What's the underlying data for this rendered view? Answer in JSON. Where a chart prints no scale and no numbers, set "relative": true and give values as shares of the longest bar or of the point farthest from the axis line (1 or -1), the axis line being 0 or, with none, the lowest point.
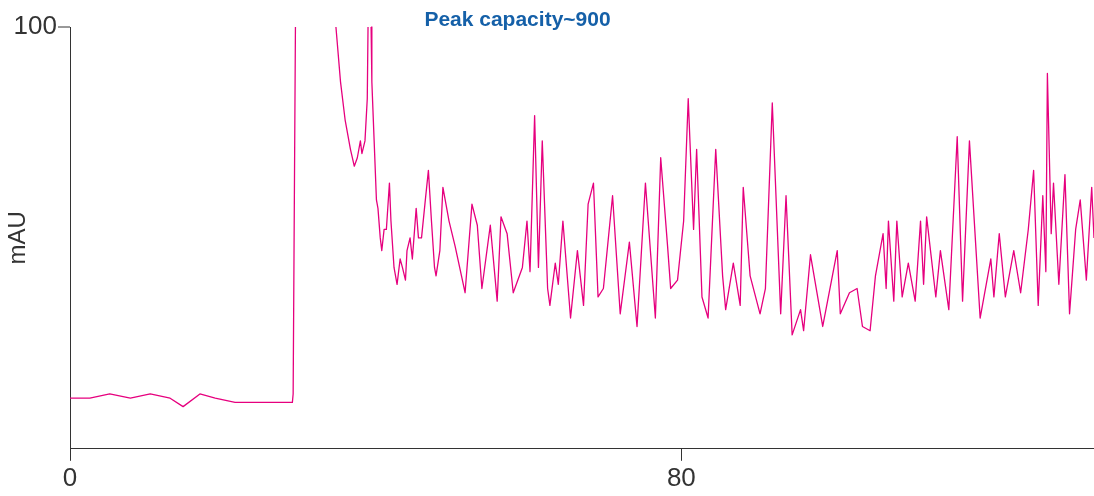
{
  "chart_data": {
    "type": "line",
    "title": "Peak capacity~900",
    "ylabel": "mAU",
    "relative": true,
    "annotations": [
      "100"
    ],
    "xlim": [
      0,
      134
    ],
    "xticks": [
      0,
      80
    ],
    "grid": false,
    "legend": false,
    "marker": "none",
    "line_style": "solid",
    "series": [
      {
        "color": "#e6007e",
        "x": [
          0,
          2.6,
          5.2,
          7.9,
          10.5,
          13.1,
          14.8,
          17.0,
          19.0,
          21.6,
          24.9,
          27.5,
          29.1,
          29.2,
          29.5,
          32.1,
          34.8,
          35.4,
          36.0,
          36.7,
          37.2,
          37.6,
          38.0,
          38.2,
          38.6,
          38.9,
          39.0,
          39.2,
          39.4,
          39.5,
          39.8,
          40.1,
          40.3,
          40.6,
          40.8,
          41.1,
          41.4,
          41.8,
          42.0,
          42.4,
          42.8,
          43.2,
          43.5,
          43.9,
          44.1,
          44.5,
          44.8,
          45.3,
          45.6,
          46.0,
          46.5,
          46.9,
          47.3,
          47.7,
          47.9,
          48.4,
          48.8,
          49.6,
          50.4,
          51.7,
          52.6,
          53.3,
          53.9,
          55.0,
          55.9,
          56.4,
          57.2,
          58.0,
          59.2,
          59.8,
          60.2,
          60.8,
          61.3,
          61.8,
          62.5,
          62.8,
          63.5,
          63.9,
          64.5,
          65.5,
          66.4,
          67.2,
          67.8,
          68.5,
          69.1,
          69.8,
          71.0,
          72.0,
          73.2,
          74.2,
          75.3,
          76.6,
          77.3,
          78.2,
          78.6,
          79.5,
          80.3,
          80.9,
          81.6,
          82.0,
          82.7,
          83.5,
          84.5,
          85.4,
          85.8,
          86.8,
          87.7,
          88.1,
          89.0,
          90.3,
          91.0,
          91.9,
          93.0,
          93.7,
          94.5,
          95.6,
          96.0,
          96.9,
          98.5,
          100.4,
          100.8,
          102.0,
          103.0,
          103.7,
          104.7,
          105.4,
          106.4,
          106.8,
          107.1,
          107.8,
          108.2,
          108.9,
          109.7,
          110.6,
          111.3,
          111.7,
          112.1,
          113.3,
          113.9,
          115.0,
          116.1,
          116.8,
          117.7,
          119.1,
          120.5,
          120.9,
          121.6,
          122.4,
          123.5,
          124.4,
          125.4,
          126.1,
          126.7,
          127.3,
          127.7,
          127.9,
          128.4,
          128.7,
          129.4,
          130.2,
          130.8,
          131.6,
          132.2,
          133.0,
          133.7,
          134
        ],
        "values": [
          0.12,
          0.12,
          0.13,
          0.12,
          0.13,
          0.12,
          0.1,
          0.13,
          0.12,
          0.11,
          0.11,
          0.11,
          0.11,
          0.13,
          1,
          null,
          1,
          0.87,
          0.78,
          0.71,
          0.67,
          0.69,
          0.73,
          0.7,
          0.73,
          0.83,
          1,
          null,
          1,
          0.87,
          0.73,
          0.59,
          0.57,
          0.5,
          0.47,
          0.52,
          0.52,
          0.63,
          0.54,
          0.43,
          0.39,
          0.45,
          0.43,
          0.4,
          0.47,
          0.5,
          0.45,
          0.57,
          0.5,
          0.5,
          0.59,
          0.66,
          0.54,
          0.43,
          0.41,
          0.47,
          0.62,
          0.54,
          0.48,
          0.37,
          0.58,
          0.53,
          0.38,
          0.53,
          0.35,
          0.55,
          0.51,
          0.37,
          0.43,
          0.54,
          0.42,
          0.79,
          0.43,
          0.73,
          0.38,
          0.34,
          0.44,
          0.39,
          0.54,
          0.31,
          0.47,
          0.34,
          0.58,
          0.63,
          0.36,
          0.38,
          0.6,
          0.32,
          0.49,
          0.29,
          0.63,
          0.31,
          0.69,
          0.48,
          0.38,
          0.4,
          0.54,
          0.83,
          0.52,
          0.71,
          0.36,
          0.31,
          0.71,
          0.41,
          0.33,
          0.44,
          0.34,
          0.62,
          0.41,
          0.32,
          0.38,
          0.82,
          0.32,
          0.6,
          0.27,
          0.33,
          0.28,
          0.46,
          0.29,
          0.47,
          0.32,
          0.37,
          0.38,
          0.29,
          0.28,
          0.41,
          0.51,
          0.38,
          0.54,
          0.35,
          0.54,
          0.36,
          0.44,
          0.35,
          0.54,
          0.39,
          0.55,
          0.36,
          0.47,
          0.33,
          0.74,
          0.35,
          0.73,
          0.31,
          0.45,
          0.36,
          0.51,
          0.36,
          0.47,
          0.37,
          0.52,
          0.66,
          0.34,
          0.6,
          0.42,
          0.89,
          0.51,
          0.63,
          0.39,
          0.65,
          0.32,
          0.52,
          0.59,
          0.4,
          0.62,
          0.5
        ]
      }
    ]
  }
}
